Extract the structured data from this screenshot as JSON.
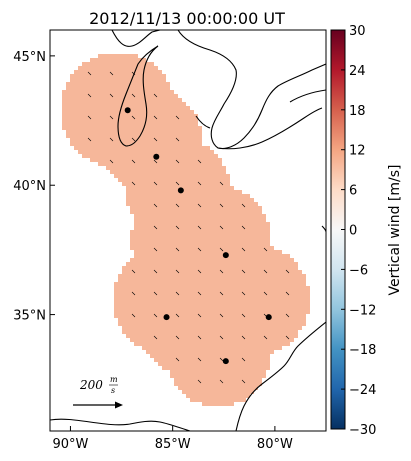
{
  "title": "2012/11/13 00:00:00 UT",
  "map": {
    "lon_ticks": [
      {
        "lon": -90,
        "label": "90°W"
      },
      {
        "lon": -85,
        "label": "85°W"
      },
      {
        "lon": -80,
        "label": "80°W"
      }
    ],
    "lat_ticks": [
      {
        "lat": 45,
        "label": "45°N"
      },
      {
        "lat": 40,
        "label": "40°N"
      },
      {
        "lat": 35,
        "label": "35°N"
      }
    ],
    "lon_range": [
      -91,
      -77.5
    ],
    "lat_range": [
      30.5,
      46
    ],
    "field_color": "#f6b79a",
    "stations": [
      {
        "lon": -87.2,
        "lat": 42.9
      },
      {
        "lon": -85.8,
        "lat": 41.1
      },
      {
        "lon": -84.6,
        "lat": 39.8
      },
      {
        "lon": -82.4,
        "lat": 37.3
      },
      {
        "lon": -85.3,
        "lat": 34.9
      },
      {
        "lon": -80.3,
        "lat": 34.9
      },
      {
        "lon": -82.4,
        "lat": 33.2
      }
    ],
    "reference_vector": {
      "label": "200",
      "units_num": "m",
      "units_den": "s"
    }
  },
  "colorbar": {
    "label": "Vertical wind [m/s]",
    "min": -30,
    "max": 30,
    "ticks": [
      "30",
      "24",
      "18",
      "12",
      "6",
      "0",
      "−6",
      "−12",
      "−18",
      "−24",
      "−30"
    ],
    "colors": [
      "#053061",
      "#2166ac",
      "#4393c3",
      "#92c5de",
      "#d1e5f0",
      "#f7f7f7",
      "#fddbc7",
      "#f4a582",
      "#d6604d",
      "#b2182b",
      "#67001f"
    ]
  }
}
